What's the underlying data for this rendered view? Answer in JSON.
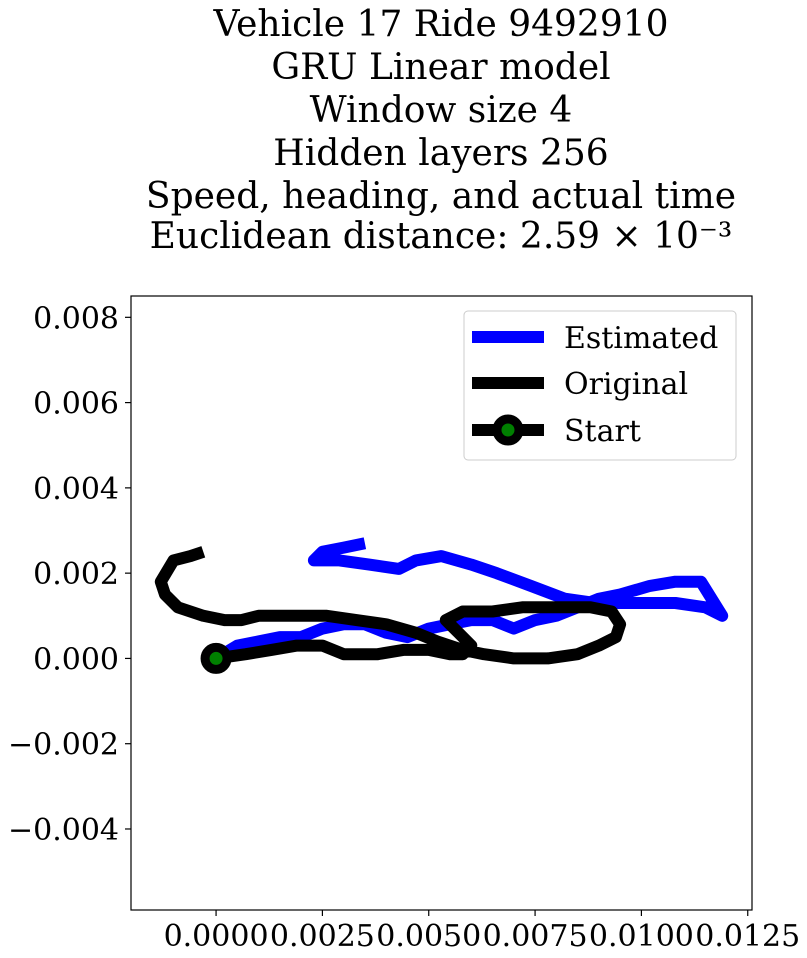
{
  "chart_data": {
    "type": "line",
    "title_lines": [
      "Vehicle 17 Ride 9492910",
      "GRU Linear model",
      "Window size 4",
      "Hidden layers 256",
      "Speed, heading, and actual time",
      "Euclidean distance: 2.59 × 10⁻³"
    ],
    "xlabel": "",
    "ylabel": "",
    "xlim": [
      -0.002,
      0.0126
    ],
    "ylim": [
      -0.0059,
      0.0085
    ],
    "x_ticks": [
      0.0,
      0.0025,
      0.005,
      0.0075,
      0.01,
      0.0125
    ],
    "x_tick_labels": [
      "0.0000",
      "0.0025",
      "0.0050",
      "0.0075",
      "0.0100",
      "0.0125"
    ],
    "y_ticks": [
      -0.004,
      -0.002,
      0.0,
      0.002,
      0.004,
      0.006,
      0.008
    ],
    "y_tick_labels": [
      "−0.004",
      "−0.002",
      "0.000",
      "0.002",
      "0.004",
      "0.006",
      "0.008"
    ],
    "grid": false,
    "legend_position": "top-right",
    "series": [
      {
        "name": "Estimated",
        "color": "#0000ff",
        "x": [
          0.0,
          0.0005,
          0.001,
          0.0015,
          0.002,
          0.0025,
          0.003,
          0.0035,
          0.004,
          0.0045,
          0.005,
          0.0055,
          0.006,
          0.0065,
          0.007,
          0.0075,
          0.008,
          0.0085,
          0.009,
          0.0095,
          0.0102,
          0.0108,
          0.0114,
          0.0119,
          0.0115,
          0.0108,
          0.0101,
          0.0095,
          0.0089,
          0.0082,
          0.0074,
          0.0066,
          0.006,
          0.0053,
          0.0047,
          0.0043,
          0.0036,
          0.0029,
          0.0023,
          0.0025,
          0.003,
          0.0035
        ],
        "y": [
          0.0,
          0.0003,
          0.0004,
          0.0005,
          0.0005,
          0.0007,
          0.0008,
          0.0008,
          0.0006,
          0.0005,
          0.0007,
          0.0008,
          0.0009,
          0.0009,
          0.0007,
          0.0009,
          0.001,
          0.0012,
          0.0014,
          0.0015,
          0.0017,
          0.0018,
          0.0018,
          0.001,
          0.0012,
          0.0013,
          0.0013,
          0.0013,
          0.0013,
          0.0014,
          0.0017,
          0.002,
          0.0022,
          0.0024,
          0.0023,
          0.0021,
          0.0022,
          0.0023,
          0.0023,
          0.0025,
          0.0026,
          0.0027
        ]
      },
      {
        "name": "Original",
        "color": "#000000",
        "x": [
          0.0,
          0.0007,
          0.0013,
          0.0019,
          0.0025,
          0.003,
          0.0038,
          0.0044,
          0.005,
          0.0055,
          0.0058,
          0.006,
          0.0057,
          0.0054,
          0.0058,
          0.0065,
          0.0072,
          0.008,
          0.0088,
          0.0093,
          0.0095,
          0.0094,
          0.009,
          0.0085,
          0.0078,
          0.007,
          0.0063,
          0.0058,
          0.0052,
          0.0047,
          0.004,
          0.0033,
          0.0026,
          0.0018,
          0.001,
          0.0006,
          0.0002,
          -0.0003,
          -0.0009,
          -0.0012,
          -0.0013,
          -0.001,
          -0.0006,
          -0.0003
        ],
        "y": [
          0.0,
          0.0001,
          0.0002,
          0.0003,
          0.0003,
          0.0001,
          0.0001,
          0.0002,
          0.0002,
          0.0001,
          0.0001,
          0.0003,
          0.0006,
          0.0009,
          0.0011,
          0.0011,
          0.0012,
          0.0012,
          0.0012,
          0.0011,
          0.0008,
          0.0005,
          0.0003,
          0.0001,
          0.0,
          0.0,
          0.0001,
          0.0002,
          0.0004,
          0.0006,
          0.0008,
          0.0009,
          0.001,
          0.001,
          0.001,
          0.0009,
          0.0009,
          0.001,
          0.0012,
          0.0015,
          0.0018,
          0.0023,
          0.0024,
          0.0025
        ]
      }
    ],
    "start_marker": {
      "name": "Start",
      "x": 0.0,
      "y": 0.0,
      "fill_color": "#008000",
      "edge_color": "#000000"
    }
  }
}
